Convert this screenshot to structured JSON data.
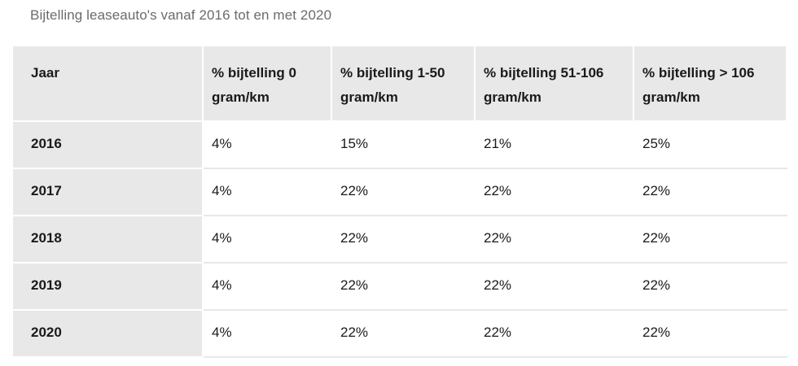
{
  "caption": "Bijtelling leaseauto's vanaf 2016 tot en met 2020",
  "table": {
    "headers": [
      "Jaar",
      "% bijtelling 0 gram/km",
      "% bijtelling 1-50 gram/km",
      "% bijtelling 51-106 gram/km",
      "% bijtelling > 106 gram/km"
    ],
    "rows": [
      [
        "2016",
        "4%",
        "15%",
        "21%",
        "25%"
      ],
      [
        "2017",
        "4%",
        "22%",
        "22%",
        "22%"
      ],
      [
        "2018",
        "4%",
        "22%",
        "22%",
        "22%"
      ],
      [
        "2019",
        "4%",
        "22%",
        "22%",
        "22%"
      ],
      [
        "2020",
        "4%",
        "22%",
        "22%",
        "22%"
      ]
    ]
  },
  "colors": {
    "header_bg": "#e8e8e8",
    "caption_text": "#6b6b6b",
    "body_text": "#1a1a1a"
  }
}
